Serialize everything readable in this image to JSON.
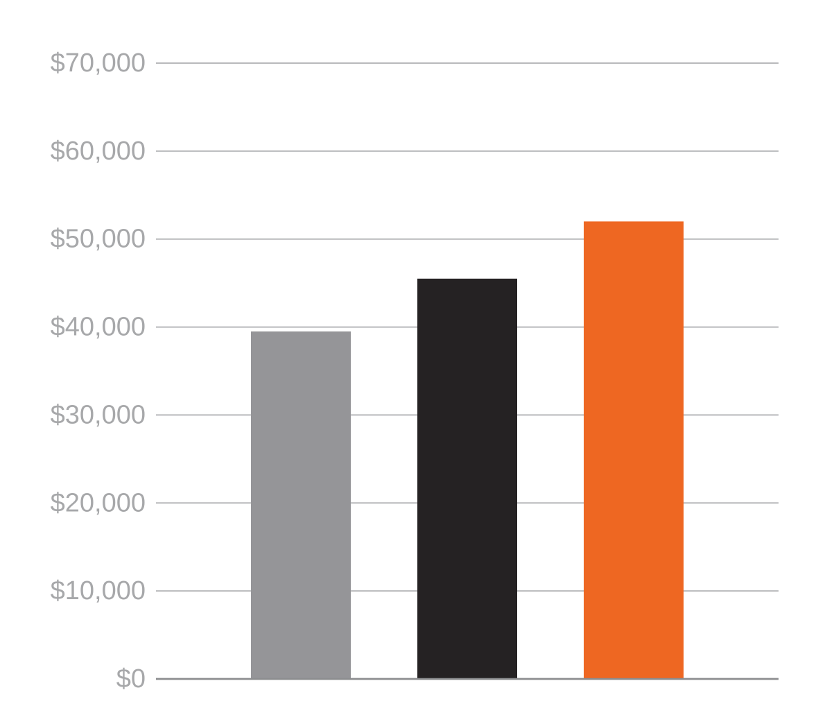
{
  "chart_data": {
    "type": "bar",
    "title": "",
    "xlabel": "",
    "ylabel": "",
    "categories": [
      "",
      "",
      ""
    ],
    "values": [
      39500,
      45500,
      52000
    ],
    "bar_colors": [
      "#959598",
      "#252223",
      "#ee6722"
    ],
    "ylim": [
      0,
      70000
    ],
    "yticks": [
      0,
      10000,
      20000,
      30000,
      40000,
      50000,
      60000,
      70000
    ],
    "ytick_labels": [
      "$0",
      "$10,000",
      "$20,000",
      "$30,000",
      "$40,000",
      "$50,000",
      "$60,000",
      "$70,000"
    ],
    "grid": true,
    "legend": "none"
  }
}
